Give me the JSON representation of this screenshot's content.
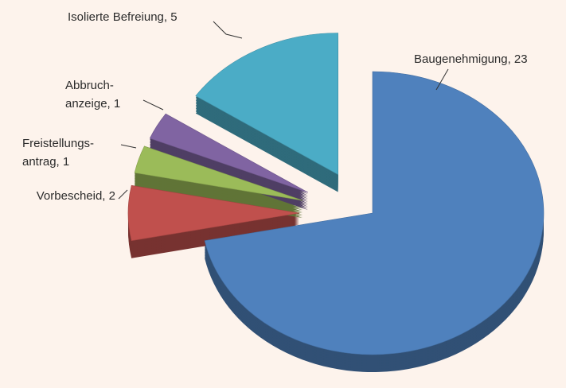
{
  "chart_data": {
    "type": "pie",
    "labels": [
      [
        "Baugenehmigung, 23"
      ],
      [
        "Vorbescheid, 2"
      ],
      [
        "Freistellungs-",
        "antrag, 1"
      ],
      [
        "Abbruch-",
        "anzeige, 1"
      ],
      [
        "Isolierte Befreiung, 5"
      ]
    ],
    "values": [
      23,
      2,
      1,
      1,
      5
    ],
    "colors": [
      "#4f81bd",
      "#c0504d",
      "#9bbb59",
      "#8064a2",
      "#4bacc6"
    ],
    "start_angle": -90,
    "exploded": [
      false,
      true,
      true,
      true,
      true
    ]
  }
}
